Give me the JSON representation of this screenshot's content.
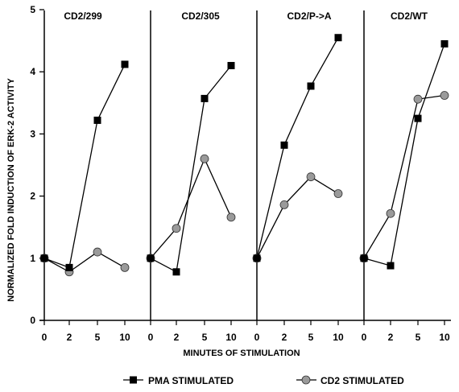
{
  "chart_data": {
    "type": "line",
    "ylabel": "NORMALIZED FOLD INDUCTION OF ERK-2 ACTIVITY",
    "xlabel": "MINUTES OF STIMULATION",
    "ylim": [
      0,
      5
    ],
    "yticks": [
      "0",
      "1",
      "2",
      "3",
      "4",
      "5"
    ],
    "x": [
      "0",
      "2",
      "5",
      "10"
    ],
    "grid": false,
    "legend_position": "bottom",
    "legend": [
      {
        "name": "PMA STIMULATED",
        "marker": "square",
        "color": "#000000"
      },
      {
        "name": "CD2 STIMULATED",
        "marker": "circle",
        "color": "#9a9a9a"
      }
    ],
    "panels": [
      {
        "title": "CD2/299",
        "series": [
          {
            "name": "PMA STIMULATED",
            "values": [
              1.0,
              0.85,
              3.22,
              4.12
            ]
          },
          {
            "name": "CD2 STIMULATED",
            "values": [
              1.0,
              0.78,
              1.1,
              0.85
            ]
          }
        ]
      },
      {
        "title": "CD2/305",
        "series": [
          {
            "name": "PMA STIMULATED",
            "values": [
              1.0,
              0.78,
              3.57,
              4.1
            ]
          },
          {
            "name": "CD2 STIMULATED",
            "values": [
              1.0,
              1.48,
              2.6,
              1.66
            ]
          }
        ]
      },
      {
        "title": "CD2/P->A",
        "series": [
          {
            "name": "PMA STIMULATED",
            "values": [
              1.0,
              2.82,
              3.77,
              4.55
            ]
          },
          {
            "name": "CD2 STIMULATED",
            "values": [
              1.0,
              1.86,
              2.31,
              2.04
            ]
          }
        ]
      },
      {
        "title": "CD2/WT",
        "series": [
          {
            "name": "PMA STIMULATED",
            "values": [
              1.0,
              0.88,
              3.25,
              4.45
            ]
          },
          {
            "name": "CD2 STIMULATED",
            "values": [
              1.0,
              1.72,
              3.56,
              3.62
            ]
          }
        ]
      }
    ]
  }
}
